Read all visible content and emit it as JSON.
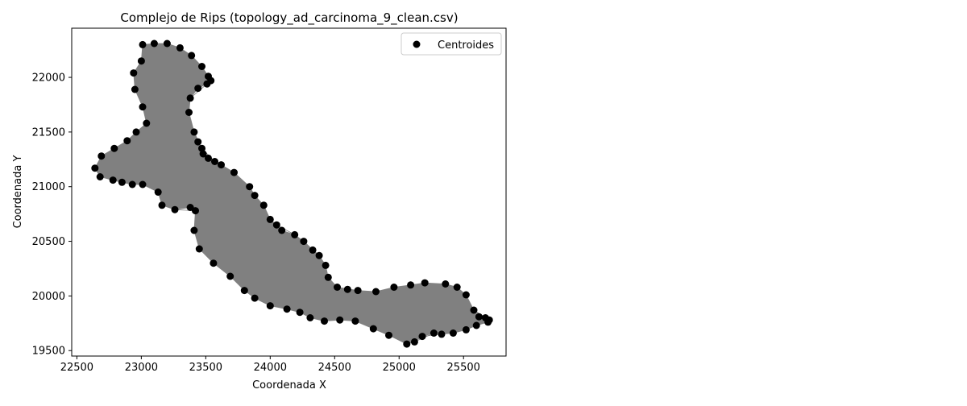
{
  "chart_data": {
    "type": "scatter",
    "title": "Complejo de Rips (topology_ad_carcinoma_9_clean.csv)",
    "xlabel": "Coordenada X",
    "ylabel": "Coordenada Y",
    "xlim": [
      22460,
      25830
    ],
    "ylim": [
      19450,
      22450
    ],
    "xticks": [
      22500,
      23000,
      23500,
      24000,
      24500,
      25000,
      25500
    ],
    "yticks": [
      19500,
      20000,
      20500,
      21000,
      21500,
      22000
    ],
    "legend": {
      "placement": "top-right",
      "entries": [
        "Centroides"
      ]
    },
    "grid": false,
    "colors": {
      "points": "#000000",
      "edges": "#808080",
      "axes": "#000000",
      "background": "#ffffff"
    },
    "series": [
      {
        "name": "Centroides",
        "kind": "boundary-points",
        "x": [
          23010,
          23100,
          23200,
          23300,
          23390,
          23470,
          23520,
          23540,
          23510,
          23440,
          23380,
          23370,
          23410,
          23440,
          23470,
          23480,
          23520,
          23570,
          23620,
          23720,
          23840,
          23880,
          23950,
          24000,
          24050,
          24090,
          24190,
          24260,
          24330,
          24380,
          24430,
          24450,
          24520,
          24600,
          24680,
          24820,
          24960,
          25090,
          25200,
          25360,
          25450,
          25520,
          25580,
          25620,
          25670,
          25700,
          25690,
          25600,
          25520,
          25420,
          25330,
          25270,
          25180,
          25120,
          25060,
          24920,
          24800,
          24660,
          24540,
          24420,
          24310,
          24230,
          24130,
          24000,
          23880,
          23800,
          23690,
          23560,
          23450,
          23410,
          23420,
          23380,
          23260,
          23160,
          23130,
          23010,
          22930,
          22850,
          22780,
          22680,
          22640,
          22690,
          22790,
          22890,
          22960,
          23040,
          23010,
          22950,
          22940,
          23000
        ],
        "y": [
          22300,
          22310,
          22310,
          22270,
          22200,
          22100,
          22010,
          21970,
          21940,
          21900,
          21810,
          21680,
          21500,
          21410,
          21350,
          21300,
          21260,
          21230,
          21200,
          21130,
          21000,
          20920,
          20830,
          20700,
          20650,
          20600,
          20560,
          20500,
          20420,
          20370,
          20280,
          20170,
          20080,
          20060,
          20050,
          20040,
          20080,
          20100,
          20120,
          20110,
          20080,
          20010,
          19870,
          19810,
          19800,
          19780,
          19760,
          19730,
          19690,
          19660,
          19650,
          19660,
          19630,
          19580,
          19560,
          19640,
          19700,
          19770,
          19780,
          19770,
          19800,
          19850,
          19880,
          19910,
          19980,
          20050,
          20180,
          20300,
          20430,
          20600,
          20780,
          20810,
          20790,
          20830,
          20950,
          21020,
          21020,
          21040,
          21060,
          21090,
          21170,
          21280,
          21350,
          21420,
          21500,
          21580,
          21730,
          21890,
          22040,
          22150
        ]
      }
    ]
  }
}
